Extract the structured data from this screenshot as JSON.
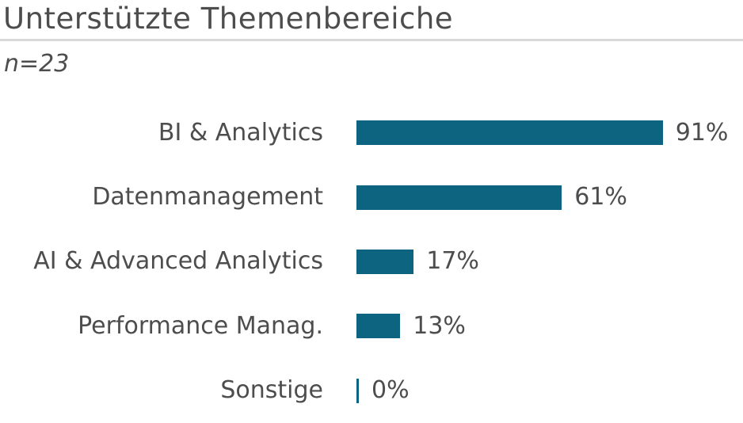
{
  "header": {
    "title": "Unterstützte Themenbereiche",
    "sample_size": "n=23"
  },
  "chart_data": {
    "type": "bar",
    "orientation": "horizontal",
    "title": "Unterstützte Themenbereiche",
    "subtitle": "n=23",
    "categories": [
      "BI & Analytics",
      "Datenmanagement",
      "AI & Advanced Analytics",
      "Performance Manag.",
      "Sonstige"
    ],
    "values": [
      91,
      61,
      17,
      13,
      0
    ],
    "value_labels": [
      "91%",
      "61%",
      "17%",
      "13%",
      "0%"
    ],
    "unit": "%",
    "xlabel": "",
    "ylabel": "",
    "xlim": [
      0,
      100
    ],
    "grid": false,
    "legend": false,
    "data_labels_position": "end-of-bar"
  },
  "colors": {
    "bar": "#0d6480",
    "text": "#4d4d4d",
    "divider": "#d9d9d9",
    "background": "#ffffff"
  }
}
